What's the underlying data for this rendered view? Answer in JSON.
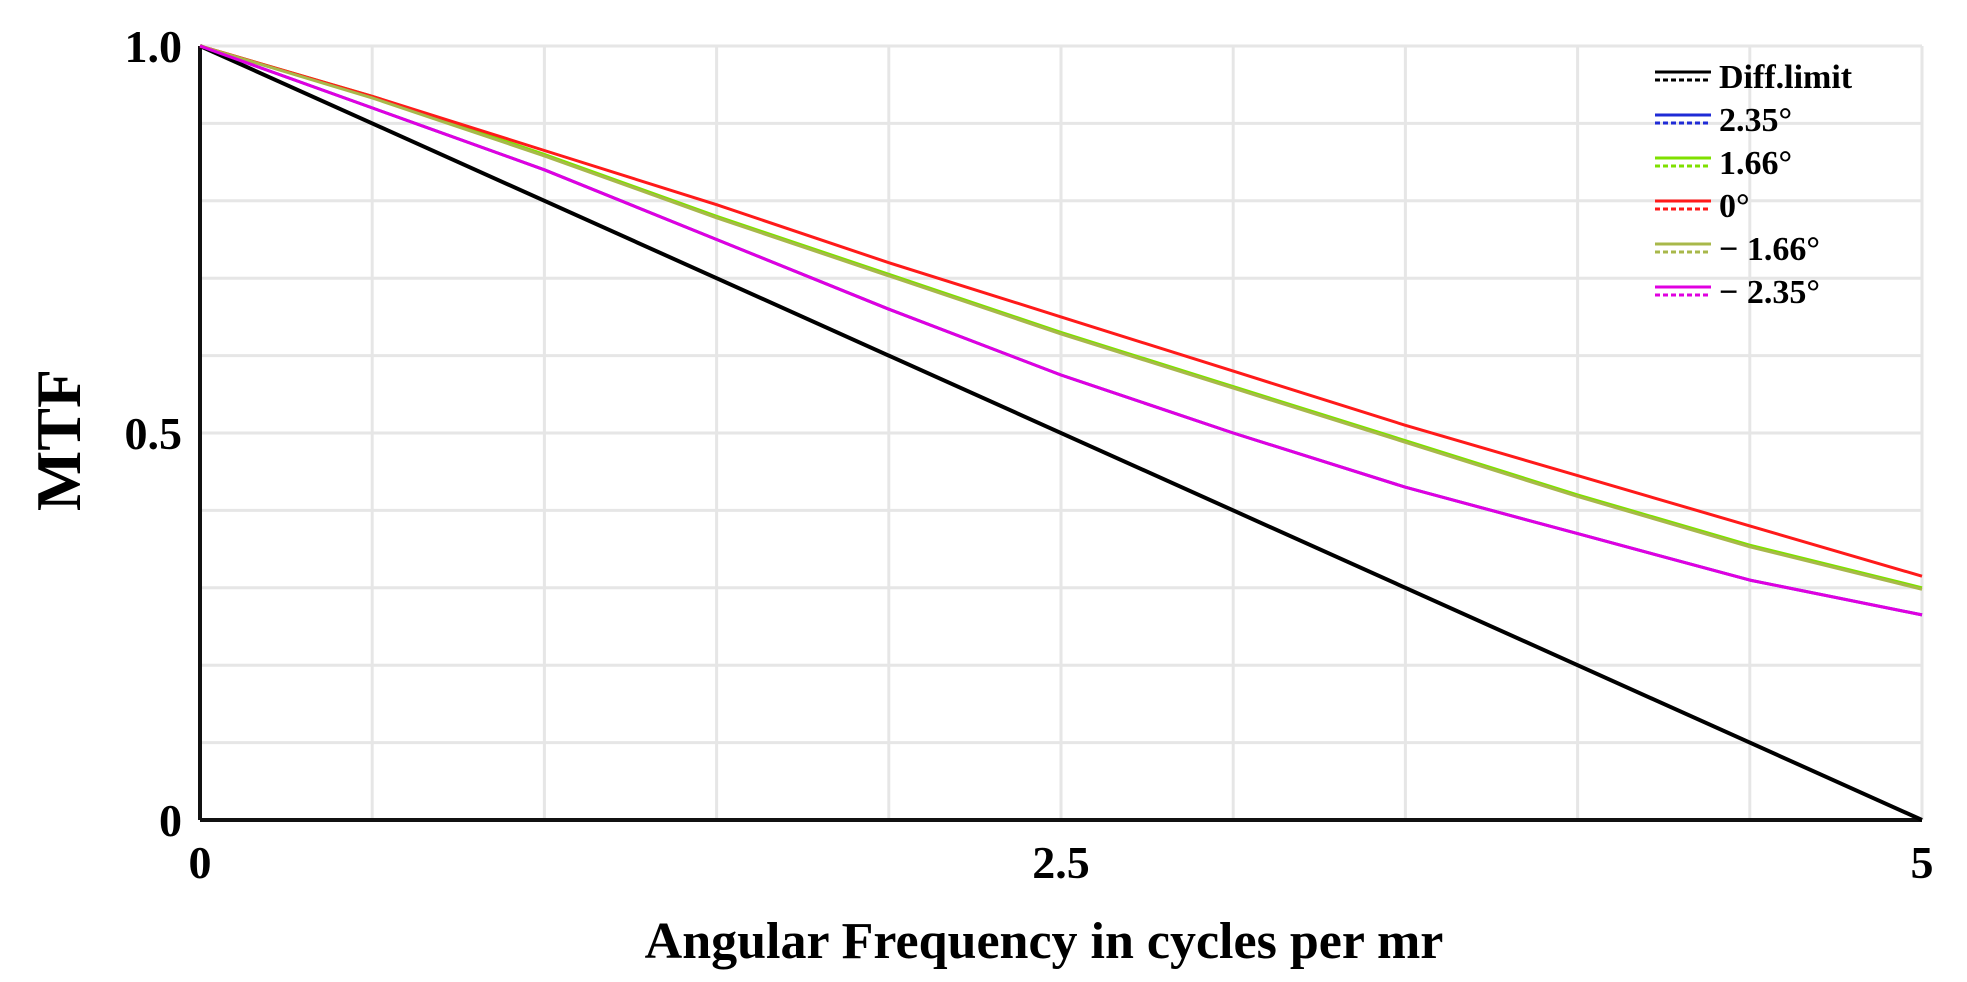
{
  "chart_data": {
    "type": "line",
    "title": "",
    "xlabel": "Angular Frequency in cycles per mr",
    "ylabel": "MTF",
    "xlim": [
      0,
      5
    ],
    "ylim": [
      0,
      1.0
    ],
    "x_ticks": [
      {
        "value": 0,
        "label": "0"
      },
      {
        "value": 2.5,
        "label": "2.5"
      },
      {
        "value": 5,
        "label": "5"
      }
    ],
    "y_ticks": [
      {
        "value": 0,
        "label": "0"
      },
      {
        "value": 0.5,
        "label": "0.5"
      },
      {
        "value": 1.0,
        "label": "1.0"
      }
    ],
    "x_grid_step": 0.5,
    "y_grid_step": 0.1,
    "grid": true,
    "legend_position": "top-right",
    "series": [
      {
        "name": "Diff.limit",
        "color": "#000000",
        "x": [
          0,
          5
        ],
        "values": [
          1.0,
          0.0
        ]
      },
      {
        "name": "2.35°",
        "color": "#1f2bd6",
        "x": [
          0,
          0.5,
          1,
          1.5,
          2,
          2.5,
          3,
          3.5,
          4,
          4.5,
          5
        ],
        "values": [
          1.0,
          0.92,
          0.84,
          0.75,
          0.66,
          0.575,
          0.5,
          0.43,
          0.37,
          0.31,
          0.265
        ]
      },
      {
        "name": "1.66°",
        "color": "#7fe000",
        "x": [
          0,
          0.5,
          1,
          1.5,
          2,
          2.5,
          3,
          3.5,
          4,
          4.5,
          5
        ],
        "values": [
          1.0,
          0.935,
          0.86,
          0.78,
          0.705,
          0.63,
          0.56,
          0.49,
          0.42,
          0.355,
          0.3
        ]
      },
      {
        "name": "0°",
        "color": "#ff1a1a",
        "x": [
          0,
          0.5,
          1,
          1.5,
          2,
          2.5,
          3,
          3.5,
          4,
          4.5,
          5
        ],
        "values": [
          1.0,
          0.935,
          0.865,
          0.795,
          0.72,
          0.65,
          0.58,
          0.51,
          0.445,
          0.38,
          0.315
        ]
      },
      {
        "name": "− 1.66°",
        "color": "#a8b84a",
        "x": [
          0,
          0.5,
          1,
          1.5,
          2,
          2.5,
          3,
          3.5,
          4,
          4.5,
          5
        ],
        "values": [
          1.0,
          0.933,
          0.858,
          0.778,
          0.703,
          0.628,
          0.558,
          0.488,
          0.418,
          0.353,
          0.298
        ]
      },
      {
        "name": "− 2.35°",
        "color": "#e000e0",
        "x": [
          0,
          0.5,
          1,
          1.5,
          2,
          2.5,
          3,
          3.5,
          4,
          4.5,
          5
        ],
        "values": [
          1.0,
          0.92,
          0.84,
          0.75,
          0.66,
          0.575,
          0.5,
          0.43,
          0.37,
          0.31,
          0.265
        ]
      }
    ]
  }
}
